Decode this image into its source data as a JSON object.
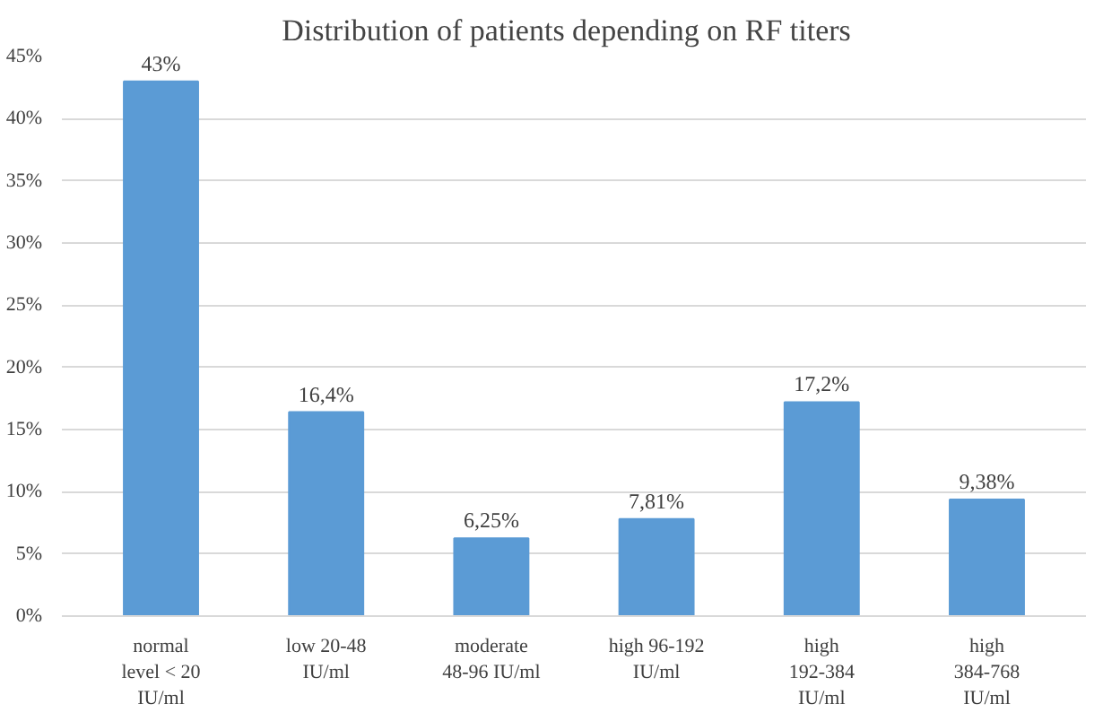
{
  "chart_data": {
    "type": "bar",
    "title": "Distribution  of patients depending  on RF titers",
    "categories": [
      "normal level < 20 IU/ml",
      "low 20-48 IU/ml",
      "moderate 48-96 IU/ml",
      "high 96-192 IU/ml",
      "high 192-384 IU/ml",
      "high 384-768 IU/ml"
    ],
    "values": [
      43,
      16.4,
      6.25,
      7.81,
      17.2,
      9.38
    ],
    "value_labels": [
      "43%",
      "16,4%",
      "6,25%",
      "7,81%",
      "17,2%",
      "9,38%"
    ],
    "color": "#5b9bd5",
    "ylim": [
      0,
      45
    ],
    "yticks": [
      {
        "value": 0,
        "label": "0%"
      },
      {
        "value": 5,
        "label": "5%"
      },
      {
        "value": 10,
        "label": "10%"
      },
      {
        "value": 15,
        "label": "15%"
      },
      {
        "value": 20,
        "label": "20%"
      },
      {
        "value": 25,
        "label": "25%"
      },
      {
        "value": 30,
        "label": "30%"
      },
      {
        "value": 35,
        "label": "35%"
      },
      {
        "value": 40,
        "label": "40%"
      },
      {
        "value": 45,
        "label": "45%"
      }
    ],
    "grid": "y"
  }
}
